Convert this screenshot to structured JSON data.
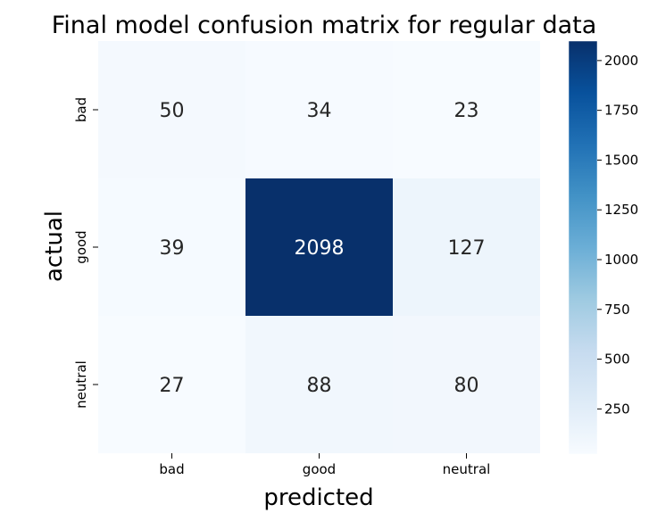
{
  "chart_data": {
    "type": "heatmap",
    "title": "Final model confusion matrix for regular data",
    "xlabel": "predicted",
    "ylabel": "actual",
    "x_categories": [
      "bad",
      "good",
      "neutral"
    ],
    "y_categories": [
      "bad",
      "good",
      "neutral"
    ],
    "values": [
      [
        50,
        34,
        23
      ],
      [
        39,
        2098,
        127
      ],
      [
        27,
        88,
        80
      ]
    ],
    "colormap": "Blues",
    "colorbar": {
      "min": 23,
      "max": 2098,
      "ticks": [
        250,
        500,
        750,
        1000,
        1250,
        1500,
        1750,
        2000
      ]
    },
    "grid": false,
    "legend": "colorbar-right"
  }
}
